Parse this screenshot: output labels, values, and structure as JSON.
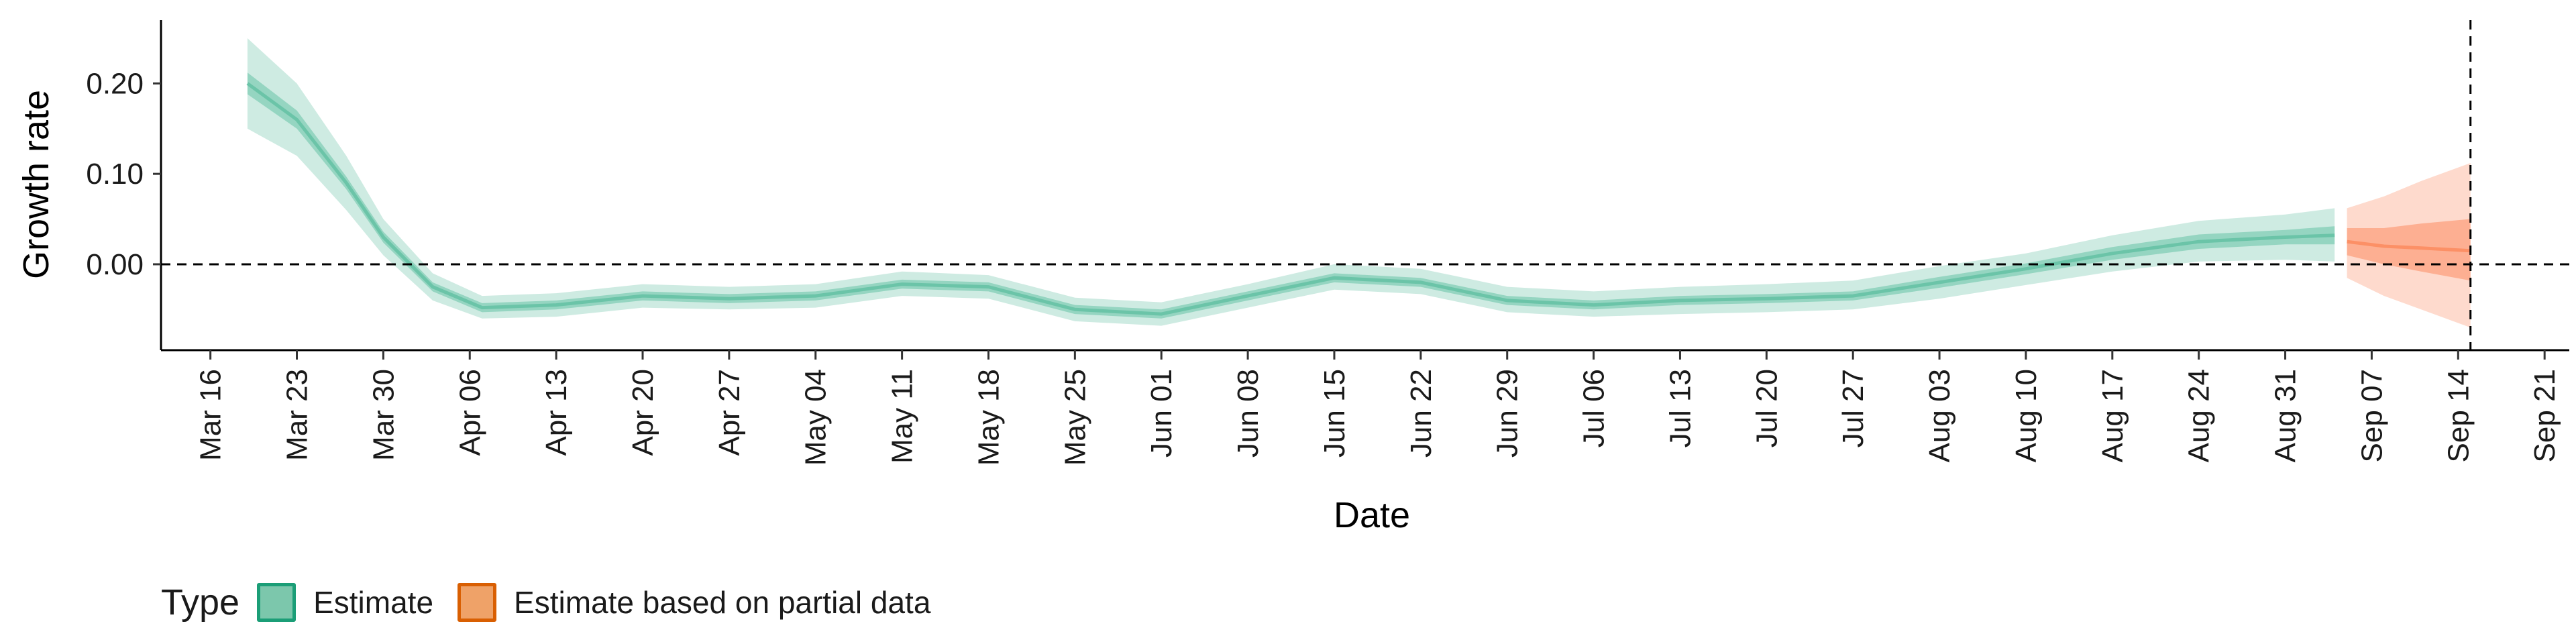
{
  "chart_data": {
    "type": "area",
    "title": "",
    "xlabel": "Date",
    "ylabel": "Growth rate",
    "ylim": [
      -0.095,
      0.27
    ],
    "xlim": [
      "2020-03-12",
      "2020-09-23"
    ],
    "y_ticks": [
      "0.00",
      "0.10",
      "0.20"
    ],
    "y_tick_values": [
      0.0,
      0.1,
      0.2
    ],
    "x_ticks": [
      "Mar 16",
      "Mar 23",
      "Mar 30",
      "Apr 06",
      "Apr 13",
      "Apr 20",
      "Apr 27",
      "May 04",
      "May 11",
      "May 18",
      "May 25",
      "Jun 01",
      "Jun 08",
      "Jun 15",
      "Jun 22",
      "Jun 29",
      "Jul 06",
      "Jul 13",
      "Jul 20",
      "Jul 27",
      "Aug 03",
      "Aug 10",
      "Aug 17",
      "Aug 24",
      "Aug 31",
      "Sep 07",
      "Sep 14",
      "Sep 21"
    ],
    "x_tick_dates": [
      "2020-03-16",
      "2020-03-23",
      "2020-03-30",
      "2020-04-06",
      "2020-04-13",
      "2020-04-20",
      "2020-04-27",
      "2020-05-04",
      "2020-05-11",
      "2020-05-18",
      "2020-05-25",
      "2020-06-01",
      "2020-06-08",
      "2020-06-15",
      "2020-06-22",
      "2020-06-29",
      "2020-07-06",
      "2020-07-13",
      "2020-07-20",
      "2020-07-27",
      "2020-08-03",
      "2020-08-10",
      "2020-08-17",
      "2020-08-24",
      "2020-08-31",
      "2020-09-07",
      "2020-09-14",
      "2020-09-21"
    ],
    "reference_lines": {
      "horizontal_y": 0.0,
      "vertical_date": "2020-09-15",
      "style": "dashed"
    },
    "grid": false,
    "legend_position": "bottom-left",
    "legend_title": "Type",
    "series": [
      {
        "name": "Estimate",
        "color": "#1b9e77",
        "fill": "#66c2a5",
        "points": [
          {
            "date": "2020-03-19",
            "median": 0.2,
            "lower50": 0.188,
            "upper50": 0.212,
            "lower90": 0.15,
            "upper90": 0.25
          },
          {
            "date": "2020-03-23",
            "median": 0.16,
            "lower50": 0.15,
            "upper50": 0.17,
            "lower90": 0.12,
            "upper90": 0.2
          },
          {
            "date": "2020-03-27",
            "median": 0.09,
            "lower50": 0.083,
            "upper50": 0.097,
            "lower90": 0.06,
            "upper90": 0.12
          },
          {
            "date": "2020-03-30",
            "median": 0.03,
            "lower50": 0.024,
            "upper50": 0.036,
            "lower90": 0.01,
            "upper90": 0.05
          },
          {
            "date": "2020-04-03",
            "median": -0.025,
            "lower50": -0.03,
            "upper50": -0.02,
            "lower90": -0.04,
            "upper90": -0.01
          },
          {
            "date": "2020-04-07",
            "median": -0.048,
            "lower50": -0.053,
            "upper50": -0.043,
            "lower90": -0.06,
            "upper90": -0.035
          },
          {
            "date": "2020-04-13",
            "median": -0.045,
            "lower50": -0.05,
            "upper50": -0.04,
            "lower90": -0.058,
            "upper90": -0.032
          },
          {
            "date": "2020-04-20",
            "median": -0.035,
            "lower50": -0.04,
            "upper50": -0.03,
            "lower90": -0.048,
            "upper90": -0.022
          },
          {
            "date": "2020-04-27",
            "median": -0.038,
            "lower50": -0.043,
            "upper50": -0.033,
            "lower90": -0.05,
            "upper90": -0.025
          },
          {
            "date": "2020-05-04",
            "median": -0.035,
            "lower50": -0.04,
            "upper50": -0.03,
            "lower90": -0.048,
            "upper90": -0.022
          },
          {
            "date": "2020-05-11",
            "median": -0.022,
            "lower50": -0.027,
            "upper50": -0.017,
            "lower90": -0.035,
            "upper90": -0.008
          },
          {
            "date": "2020-05-18",
            "median": -0.025,
            "lower50": -0.03,
            "upper50": -0.02,
            "lower90": -0.038,
            "upper90": -0.012
          },
          {
            "date": "2020-05-25",
            "median": -0.05,
            "lower50": -0.055,
            "upper50": -0.045,
            "lower90": -0.063,
            "upper90": -0.037
          },
          {
            "date": "2020-06-01",
            "median": -0.055,
            "lower50": -0.06,
            "upper50": -0.05,
            "lower90": -0.068,
            "upper90": -0.042
          },
          {
            "date": "2020-06-08",
            "median": -0.035,
            "lower50": -0.04,
            "upper50": -0.03,
            "lower90": -0.048,
            "upper90": -0.022
          },
          {
            "date": "2020-06-15",
            "median": -0.015,
            "lower50": -0.02,
            "upper50": -0.01,
            "lower90": -0.028,
            "upper90": 0.0
          },
          {
            "date": "2020-06-22",
            "median": -0.02,
            "lower50": -0.025,
            "upper50": -0.015,
            "lower90": -0.033,
            "upper90": -0.005
          },
          {
            "date": "2020-06-29",
            "median": -0.04,
            "lower50": -0.045,
            "upper50": -0.035,
            "lower90": -0.053,
            "upper90": -0.025
          },
          {
            "date": "2020-07-06",
            "median": -0.045,
            "lower50": -0.05,
            "upper50": -0.04,
            "lower90": -0.058,
            "upper90": -0.03
          },
          {
            "date": "2020-07-13",
            "median": -0.04,
            "lower50": -0.045,
            "upper50": -0.035,
            "lower90": -0.055,
            "upper90": -0.025
          },
          {
            "date": "2020-07-20",
            "median": -0.038,
            "lower50": -0.043,
            "upper50": -0.033,
            "lower90": -0.053,
            "upper90": -0.022
          },
          {
            "date": "2020-07-27",
            "median": -0.035,
            "lower50": -0.04,
            "upper50": -0.03,
            "lower90": -0.05,
            "upper90": -0.018
          },
          {
            "date": "2020-08-03",
            "median": -0.02,
            "lower50": -0.026,
            "upper50": -0.014,
            "lower90": -0.038,
            "upper90": -0.002
          },
          {
            "date": "2020-08-10",
            "median": -0.005,
            "lower50": -0.011,
            "upper50": 0.001,
            "lower90": -0.023,
            "upper90": 0.012
          },
          {
            "date": "2020-08-17",
            "median": 0.012,
            "lower50": 0.005,
            "upper50": 0.019,
            "lower90": -0.008,
            "upper90": 0.032
          },
          {
            "date": "2020-08-24",
            "median": 0.025,
            "lower50": 0.017,
            "upper50": 0.033,
            "lower90": 0.003,
            "upper90": 0.048
          },
          {
            "date": "2020-08-31",
            "median": 0.03,
            "lower50": 0.022,
            "upper50": 0.038,
            "lower90": 0.005,
            "upper90": 0.055
          },
          {
            "date": "2020-09-04",
            "median": 0.032,
            "lower50": 0.022,
            "upper50": 0.042,
            "lower90": 0.003,
            "upper90": 0.062
          }
        ]
      },
      {
        "name": "Estimate based on partial data",
        "color": "#d95f02",
        "fill": "#fc8d62",
        "points": [
          {
            "date": "2020-09-05",
            "median": 0.025,
            "lower50": 0.01,
            "upper50": 0.04,
            "lower90": -0.015,
            "upper90": 0.062
          },
          {
            "date": "2020-09-08",
            "median": 0.02,
            "lower50": 0.0,
            "upper50": 0.04,
            "lower90": -0.035,
            "upper90": 0.075
          },
          {
            "date": "2020-09-11",
            "median": 0.018,
            "lower50": -0.008,
            "upper50": 0.045,
            "lower90": -0.05,
            "upper90": 0.092
          },
          {
            "date": "2020-09-15",
            "median": 0.015,
            "lower50": -0.018,
            "upper50": 0.05,
            "lower90": -0.07,
            "upper90": 0.112
          }
        ]
      }
    ]
  }
}
